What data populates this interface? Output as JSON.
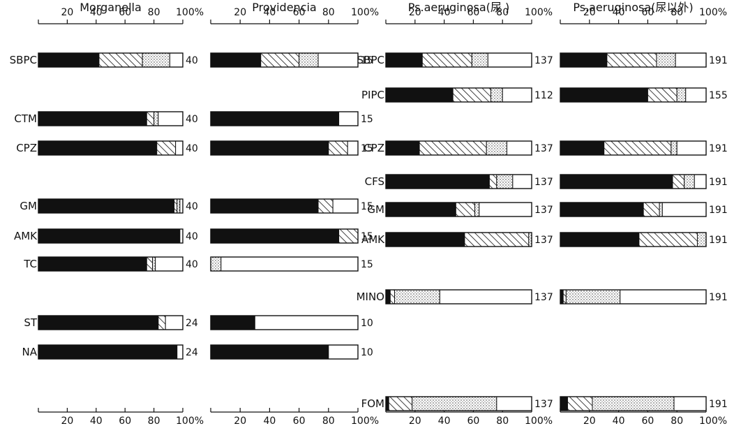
{
  "chart_data": [
    {
      "type": "bar",
      "stacked": true,
      "orientation": "horizontal",
      "title": "Morganella",
      "xlim": [
        0,
        100
      ],
      "x_ticks": [
        "20",
        "40",
        "60",
        "80",
        "100%"
      ],
      "segment_fills": [
        "solid",
        "hatched",
        "dotted",
        "white"
      ],
      "categories": [
        "SBPC",
        "CTM",
        "CPZ",
        "GM",
        "AMK",
        "TC",
        "ST",
        "NA"
      ],
      "rows": [
        {
          "drug": "SBPC",
          "values": [
            42,
            30,
            19,
            9
          ],
          "n": "40"
        },
        {
          "drug": "CTM",
          "values": [
            75,
            5,
            3,
            17
          ],
          "n": "40"
        },
        {
          "drug": "CPZ",
          "values": [
            82,
            13,
            0,
            5
          ],
          "n": "40"
        },
        {
          "drug": "GM",
          "values": [
            94,
            2,
            2,
            2
          ],
          "n": "40"
        },
        {
          "drug": "AMK",
          "values": [
            98,
            0,
            0,
            2
          ],
          "n": "40"
        },
        {
          "drug": "TC",
          "values": [
            75,
            4,
            2,
            19
          ],
          "n": "40"
        },
        {
          "drug": "ST",
          "values": [
            83,
            5,
            0,
            12
          ],
          "n": "24"
        },
        {
          "drug": "NA",
          "values": [
            96,
            0,
            0,
            4
          ],
          "n": "24"
        }
      ]
    },
    {
      "type": "bar",
      "stacked": true,
      "orientation": "horizontal",
      "title": "Providencia",
      "xlim": [
        0,
        100
      ],
      "x_ticks": [
        "20",
        "40",
        "60",
        "80",
        "100%"
      ],
      "segment_fills": [
        "solid",
        "hatched",
        "dotted",
        "white"
      ],
      "categories": [
        "SBPC",
        "CTM",
        "CPZ",
        "GM",
        "AMK",
        "TC",
        "ST",
        "NA"
      ],
      "rows": [
        {
          "drug": "SBPC",
          "values": [
            34,
            26,
            13,
            27
          ],
          "n": "15"
        },
        {
          "drug": "CTM",
          "values": [
            87,
            0,
            0,
            13
          ],
          "n": "15"
        },
        {
          "drug": "CPZ",
          "values": [
            80,
            13,
            0,
            7
          ],
          "n": "15"
        },
        {
          "drug": "GM",
          "values": [
            73,
            10,
            0,
            17
          ],
          "n": "15"
        },
        {
          "drug": "AMK",
          "values": [
            87,
            13,
            0,
            0
          ],
          "n": "15"
        },
        {
          "drug": "TC",
          "values": [
            0,
            0,
            7,
            93
          ],
          "n": "15"
        },
        {
          "drug": "ST",
          "values": [
            30,
            0,
            0,
            70
          ],
          "n": "10"
        },
        {
          "drug": "NA",
          "values": [
            80,
            0,
            0,
            20
          ],
          "n": "10"
        }
      ]
    },
    {
      "type": "bar",
      "stacked": true,
      "orientation": "horizontal",
      "title": "Ps.aeruginosa(尿 )",
      "xlim": [
        0,
        100
      ],
      "x_ticks": [
        "20",
        "40",
        "60",
        "80",
        "100%"
      ],
      "segment_fills": [
        "solid",
        "hatched",
        "dotted",
        "white"
      ],
      "categories": [
        "SBPC",
        "PIPC",
        "CPZ",
        "CFS",
        "GM",
        "AMK",
        "MINO",
        "FOM"
      ],
      "rows": [
        {
          "drug": "SBPC",
          "values": [
            25,
            34,
            11,
            30
          ],
          "n": "137"
        },
        {
          "drug": "PIPC",
          "values": [
            46,
            26,
            8,
            20
          ],
          "n": "112"
        },
        {
          "drug": "CPZ",
          "values": [
            23,
            46,
            14,
            17
          ],
          "n": "137"
        },
        {
          "drug": "CFS",
          "values": [
            71,
            5,
            11,
            13
          ],
          "n": "137"
        },
        {
          "drug": "GM",
          "values": [
            48,
            13,
            3,
            36
          ],
          "n": "137"
        },
        {
          "drug": "AMK",
          "values": [
            54,
            44,
            2,
            0
          ],
          "n": "137"
        },
        {
          "drug": "MINO",
          "values": [
            3,
            3,
            31,
            63
          ],
          "n": "137"
        },
        {
          "drug": "FOM",
          "values": [
            2,
            16,
            58,
            24
          ],
          "n": "137"
        }
      ]
    },
    {
      "type": "bar",
      "stacked": true,
      "orientation": "horizontal",
      "title": "Ps.aeruginosa(尿以外)",
      "xlim": [
        0,
        100
      ],
      "x_ticks": [
        "20",
        "40",
        "60",
        "80",
        "100%"
      ],
      "segment_fills": [
        "solid",
        "hatched",
        "dotted",
        "white"
      ],
      "categories": [
        "SBPC",
        "PIPC",
        "CPZ",
        "CFS",
        "GM",
        "AMK",
        "MINO",
        "FOM"
      ],
      "rows": [
        {
          "drug": "SBPC",
          "values": [
            32,
            34,
            13,
            21
          ],
          "n": "191"
        },
        {
          "drug": "PIPC",
          "values": [
            60,
            20,
            6,
            14
          ],
          "n": "155"
        },
        {
          "drug": "CPZ",
          "values": [
            30,
            46,
            4,
            20
          ],
          "n": "191"
        },
        {
          "drug": "CFS",
          "values": [
            77,
            8,
            7,
            8
          ],
          "n": "191"
        },
        {
          "drug": "GM",
          "values": [
            57,
            11,
            2,
            30
          ],
          "n": "191"
        },
        {
          "drug": "AMK",
          "values": [
            54,
            40,
            6,
            0
          ],
          "n": "191"
        },
        {
          "drug": "MINO",
          "values": [
            2,
            2,
            37,
            59
          ],
          "n": "191"
        },
        {
          "drug": "FOM",
          "values": [
            5,
            17,
            56,
            22
          ],
          "n": "191"
        }
      ]
    }
  ]
}
